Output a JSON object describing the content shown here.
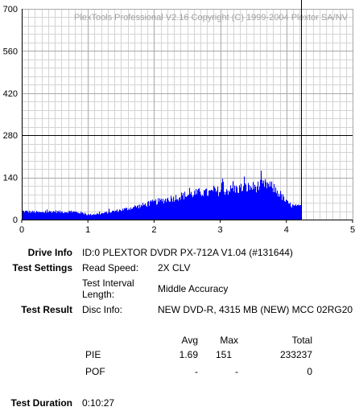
{
  "chart_data": {
    "type": "bar",
    "title": "PlexTools Professional V2.16 Copyright (C) 1999-2004 Plextor SA/NV",
    "xlim": [
      0,
      5
    ],
    "ylim": [
      0,
      700
    ],
    "xticks": [
      0,
      1,
      2,
      3,
      4,
      5
    ],
    "yticks": [
      0,
      140,
      280,
      420,
      560,
      700
    ],
    "grid": true,
    "threshold_y": 280,
    "end_x": 4.22,
    "bar_color": "#0000ff",
    "series": [
      {
        "x": [
          0.0,
          0.1,
          0.2,
          0.3,
          0.4,
          0.5,
          0.6,
          0.7,
          0.8,
          0.9,
          1.0,
          1.1,
          1.2,
          1.3,
          1.4,
          1.5,
          1.6,
          1.7,
          1.8,
          1.9,
          2.0,
          2.1,
          2.2,
          2.3,
          2.4,
          2.5,
          2.6,
          2.7,
          2.8,
          2.9,
          3.0,
          3.1,
          3.2,
          3.3,
          3.4,
          3.5,
          3.6,
          3.7,
          3.8,
          3.9,
          4.0,
          4.1,
          4.2
        ],
        "values": [
          28,
          26,
          25,
          23,
          26,
          27,
          25,
          26,
          25,
          22,
          16,
          18,
          20,
          24,
          28,
          32,
          36,
          42,
          46,
          52,
          58,
          62,
          68,
          72,
          78,
          82,
          86,
          90,
          88,
          92,
          96,
          98,
          100,
          104,
          106,
          108,
          112,
          116,
          104,
          84,
          56,
          44,
          42
        ]
      }
    ]
  },
  "drive_info": {
    "label": "Drive Info",
    "value": "ID:0 PLEXTOR DVDR PX-712A V1.04 (#131644)"
  },
  "test_settings": {
    "label": "Test Settings",
    "read_speed_label": "Read Speed:",
    "read_speed_value": "2X CLV",
    "interval_label_1": "Test Interval",
    "interval_label_2": "Length:",
    "interval_value": "Middle Accuracy"
  },
  "test_result": {
    "label": "Test Result",
    "disc_info_label": "Disc Info:",
    "disc_info_value": "NEW DVD-R, 4315 MB (NEW) MCC 02RG20"
  },
  "results_table": {
    "headers": {
      "avg": "Avg",
      "max": "Max",
      "total": "Total"
    },
    "rows": [
      {
        "name": "PIE",
        "avg": "1.69",
        "max": "151",
        "total": "233237"
      },
      {
        "name": "POF",
        "avg": "-",
        "max": "-",
        "total": "0"
      }
    ]
  },
  "test_duration": {
    "label": "Test Duration",
    "value": "0:10:27"
  }
}
